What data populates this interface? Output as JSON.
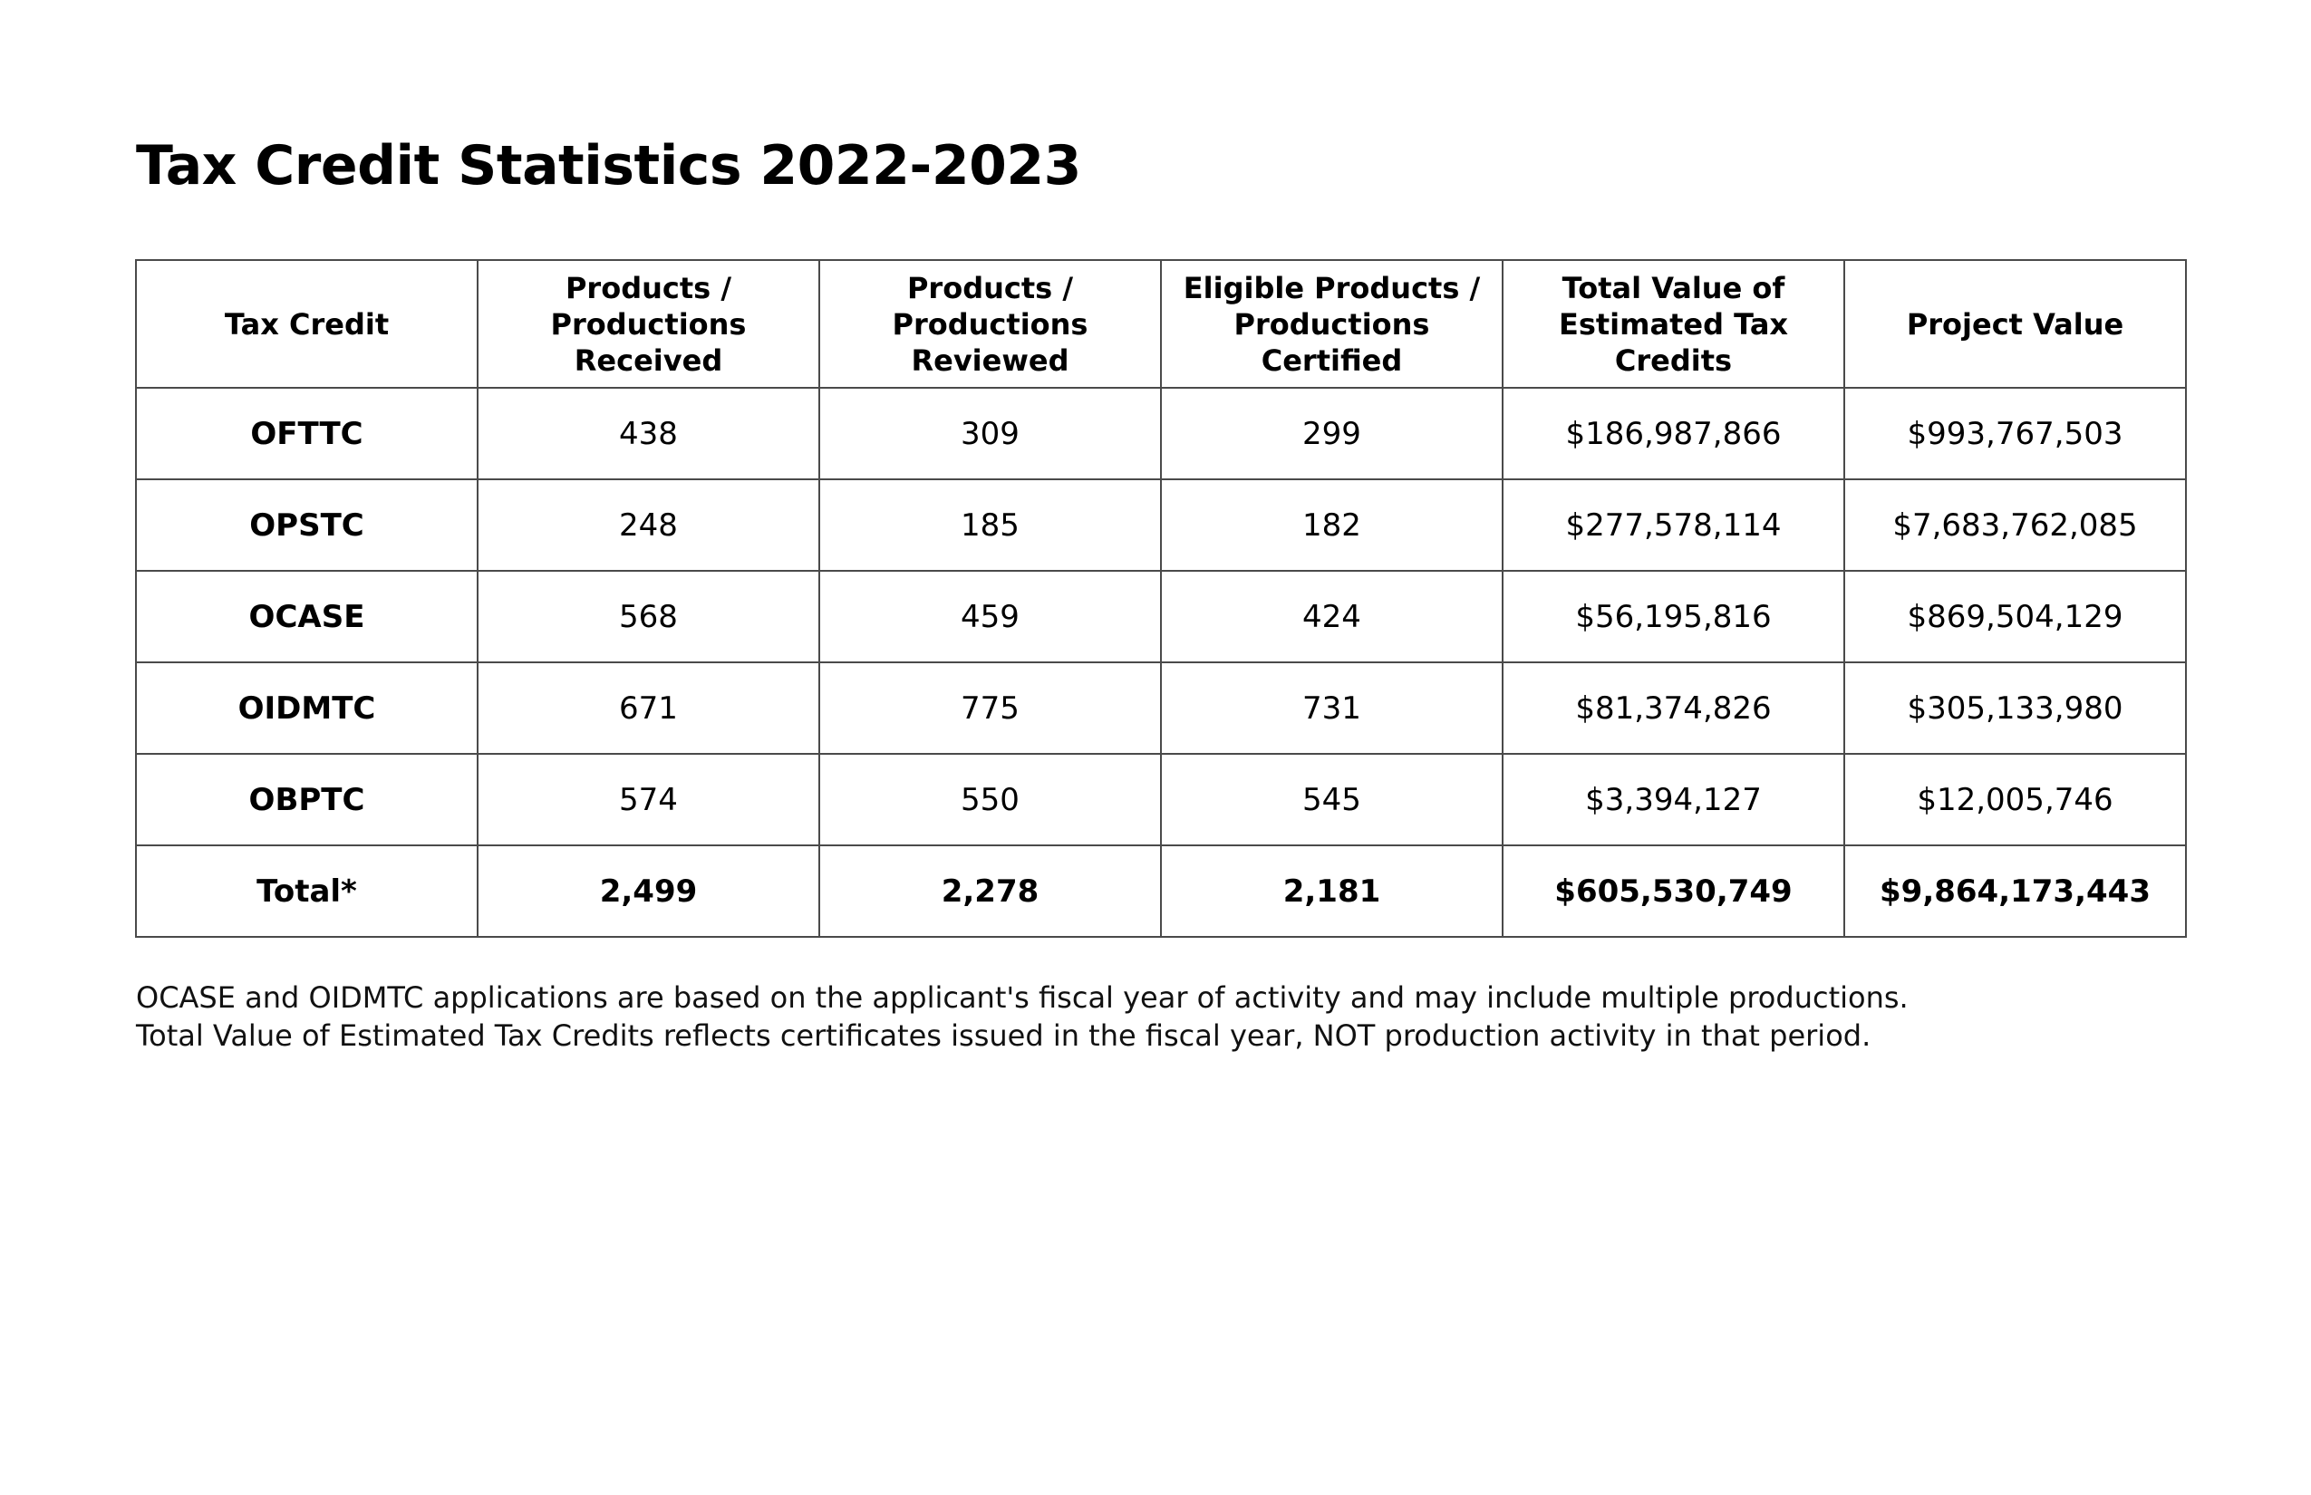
{
  "title": "Tax Credit Statistics 2022-2023",
  "table": {
    "headers": [
      "Tax Credit",
      "Products / Productions Received",
      "Products / Productions Reviewed",
      "Eligible Products / Productions Certified",
      "Total Value of Estimated Tax Credits",
      "Project Value"
    ],
    "rows": [
      {
        "label": "OFTTC",
        "received": "438",
        "reviewed": "309",
        "certified": "299",
        "estimated": "$186,987,866",
        "project": "$993,767,503"
      },
      {
        "label": "OPSTC",
        "received": "248",
        "reviewed": "185",
        "certified": "182",
        "estimated": "$277,578,114",
        "project": "$7,683,762,085"
      },
      {
        "label": "OCASE",
        "received": "568",
        "reviewed": "459",
        "certified": "424",
        "estimated": "$56,195,816",
        "project": "$869,504,129"
      },
      {
        "label": "OIDMTC",
        "received": "671",
        "reviewed": "775",
        "certified": "731",
        "estimated": "$81,374,826",
        "project": "$305,133,980"
      },
      {
        "label": "OBPTC",
        "received": "574",
        "reviewed": "550",
        "certified": "545",
        "estimated": "$3,394,127",
        "project": "$12,005,746"
      }
    ],
    "total": {
      "label": "Total*",
      "received": "2,499",
      "reviewed": "2,278",
      "certified": "2,181",
      "estimated": "$605,530,749",
      "project": "$9,864,173,443"
    }
  },
  "notes": [
    "OCASE and OIDMTC applications are based on the applicant's fiscal year of activity and may include multiple productions.",
    "Total Value of Estimated Tax Credits reflects certificates issued in the fiscal year, NOT production activity in that period."
  ]
}
